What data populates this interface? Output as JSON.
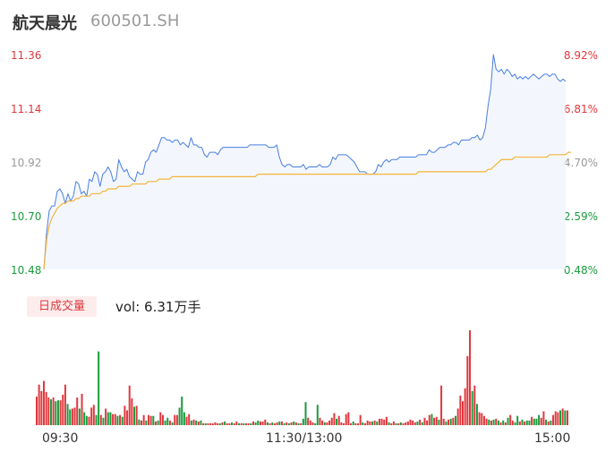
{
  "header": {
    "name": "航天晨光",
    "code": "600501.SH"
  },
  "volume_panel": {
    "tab_label": "日成交量",
    "vol_text": "vol: 6.31万手"
  },
  "colors": {
    "price_line": "#4a7fe0",
    "avg_line": "#f5b33a",
    "up": "#e0383e",
    "down": "#1a9c3c",
    "neutral": "#999999"
  },
  "chart_data": [
    {
      "type": "line",
      "title": "",
      "y_left_ticks": [
        "11.36",
        "11.14",
        "10.92",
        "10.70",
        "10.48"
      ],
      "y_right_ticks": [
        "8.92%",
        "6.81%",
        "4.70%",
        "2.59%",
        "0.48%"
      ],
      "ylim": [
        10.48,
        11.36
      ],
      "x_ticks": [
        "09:30",
        "11:30/13:00",
        "15:00"
      ],
      "series": [
        {
          "values": [
            10.48,
            10.63,
            10.72,
            10.74,
            10.74,
            10.8,
            10.81,
            10.79,
            10.75,
            10.79,
            10.76,
            10.78,
            10.84,
            10.83,
            10.79,
            10.8,
            10.78,
            10.85,
            10.84,
            10.88,
            10.87,
            10.82,
            10.87,
            10.88,
            10.9,
            10.88,
            10.84,
            10.85,
            10.93,
            10.9,
            10.88,
            10.89,
            10.86,
            10.85,
            10.84,
            10.88,
            10.87,
            10.87,
            10.92,
            10.93,
            10.96,
            10.97,
            10.96,
            10.99,
            11.02,
            11.02,
            11.01,
            11.01,
            11.0,
            11.01,
            11.01,
            10.99,
            11.0,
            10.99,
            10.98,
            11.02,
            10.99,
            10.99,
            10.98,
            10.98,
            10.95,
            10.94,
            10.96,
            10.96,
            10.96,
            10.95,
            10.97,
            10.98,
            10.98,
            10.98,
            10.98,
            10.98,
            10.98,
            10.98,
            10.98,
            10.98,
            10.98,
            10.99,
            10.99,
            10.99,
            10.99,
            10.99,
            10.99,
            10.99,
            10.98,
            10.98,
            10.98,
            10.99,
            10.94,
            10.91,
            10.9,
            10.91,
            10.91,
            10.9,
            10.9,
            10.9,
            10.9,
            10.91,
            10.89,
            10.9,
            10.9,
            10.9,
            10.9,
            10.91,
            10.9,
            10.9,
            10.9,
            10.91,
            10.94,
            10.93,
            10.95,
            10.95,
            10.95,
            10.95,
            10.94,
            10.93,
            10.92,
            10.9,
            10.88,
            10.88,
            10.88,
            10.87,
            10.87,
            10.87,
            10.88,
            10.91,
            10.9,
            10.92,
            10.93,
            10.92,
            10.93,
            10.93,
            10.93,
            10.94,
            10.94,
            10.94,
            10.94,
            10.94,
            10.94,
            10.94,
            10.95,
            10.95,
            10.95,
            10.95,
            10.97,
            10.96,
            10.96,
            10.97,
            10.98,
            10.98,
            10.98,
            10.99,
            10.99,
            11.0,
            11.0,
            10.99,
            11.01,
            11.01,
            11.01,
            11.01,
            11.02,
            11.02,
            11.03,
            11.01,
            11.02,
            11.06,
            11.15,
            11.22,
            11.36,
            11.3,
            11.29,
            11.3,
            11.28,
            11.3,
            11.29,
            11.27,
            11.28,
            11.26,
            11.27,
            11.26,
            11.27,
            11.26,
            11.27,
            11.28,
            11.27,
            11.26,
            11.27,
            11.28,
            11.28,
            11.27,
            11.28,
            11.28,
            11.26,
            11.25,
            11.26,
            11.25
          ]
        },
        {
          "values": [
            10.48,
            10.6,
            10.66,
            10.69,
            10.71,
            10.73,
            10.74,
            10.75,
            10.75,
            10.76,
            10.76,
            10.76,
            10.77,
            10.77,
            10.78,
            10.78,
            10.78,
            10.78,
            10.79,
            10.79,
            10.79,
            10.79,
            10.8,
            10.8,
            10.81,
            10.81,
            10.81,
            10.81,
            10.82,
            10.82,
            10.82,
            10.82,
            10.82,
            10.83,
            10.83,
            10.83,
            10.83,
            10.83,
            10.83,
            10.84,
            10.84,
            10.84,
            10.84,
            10.85,
            10.85,
            10.85,
            10.85,
            10.85,
            10.86,
            10.86,
            10.86,
            10.86,
            10.86,
            10.86,
            10.86,
            10.86,
            10.86,
            10.86,
            10.86,
            10.86,
            10.86,
            10.86,
            10.86,
            10.86,
            10.86,
            10.86,
            10.86,
            10.86,
            10.86,
            10.86,
            10.86,
            10.86,
            10.86,
            10.86,
            10.86,
            10.86,
            10.86,
            10.86,
            10.86,
            10.86,
            10.87,
            10.87,
            10.87,
            10.87,
            10.87,
            10.87,
            10.87,
            10.87,
            10.87,
            10.87,
            10.87,
            10.87,
            10.87,
            10.87,
            10.87,
            10.87,
            10.87,
            10.87,
            10.87,
            10.87,
            10.87,
            10.87,
            10.87,
            10.87,
            10.87,
            10.87,
            10.87,
            10.87,
            10.87,
            10.87,
            10.87,
            10.87,
            10.87,
            10.87,
            10.87,
            10.87,
            10.87,
            10.87,
            10.87,
            10.87,
            10.87,
            10.87,
            10.87,
            10.87,
            10.87,
            10.87,
            10.87,
            10.87,
            10.87,
            10.87,
            10.87,
            10.87,
            10.87,
            10.87,
            10.87,
            10.87,
            10.87,
            10.87,
            10.87,
            10.87,
            10.88,
            10.88,
            10.88,
            10.88,
            10.88,
            10.88,
            10.88,
            10.88,
            10.88,
            10.88,
            10.88,
            10.88,
            10.88,
            10.88,
            10.88,
            10.88,
            10.88,
            10.88,
            10.88,
            10.88,
            10.88,
            10.88,
            10.88,
            10.88,
            10.88,
            10.88,
            10.89,
            10.89,
            10.9,
            10.91,
            10.92,
            10.93,
            10.93,
            10.93,
            10.93,
            10.93,
            10.94,
            10.94,
            10.94,
            10.94,
            10.94,
            10.94,
            10.94,
            10.94,
            10.94,
            10.94,
            10.94,
            10.94,
            10.94,
            10.95,
            10.95,
            10.95,
            10.95,
            10.95,
            10.95,
            10.95,
            10.96,
            10.96
          ]
        }
      ]
    },
    {
      "type": "bar",
      "title": "",
      "values": [
        31,
        44,
        37,
        48,
        36,
        30,
        28,
        30,
        26,
        27,
        27,
        33,
        44,
        23,
        17,
        18,
        19,
        30,
        18,
        34,
        14,
        10,
        9,
        19,
        22,
        11,
        80,
        11,
        8,
        18,
        14,
        14,
        12,
        12,
        10,
        11,
        9,
        21,
        16,
        43,
        29,
        20,
        21,
        6,
        5,
        11,
        5,
        11,
        10,
        10,
        4,
        5,
        14,
        11,
        5,
        8,
        5,
        3,
        11,
        11,
        19,
        31,
        14,
        9,
        12,
        5,
        6,
        5,
        4,
        5,
        2,
        2,
        2,
        2,
        2,
        3,
        2,
        2,
        3,
        4,
        2,
        2,
        3,
        2,
        4,
        2,
        2,
        2,
        2,
        2,
        2,
        4,
        3,
        5,
        4,
        4,
        6,
        3,
        2,
        3,
        2,
        3,
        4,
        4,
        2,
        3,
        2,
        3,
        4,
        3,
        2,
        2,
        7,
        25,
        8,
        5,
        3,
        2,
        22,
        8,
        5,
        3,
        3,
        5,
        8,
        13,
        7,
        10,
        3,
        2,
        12,
        14,
        2,
        4,
        2,
        2,
        11,
        3,
        2,
        5,
        4,
        4,
        5,
        4,
        7,
        7,
        6,
        9,
        3,
        2,
        4,
        2,
        2,
        3,
        2,
        3,
        4,
        6,
        5,
        3,
        4,
        6,
        3,
        8,
        5,
        11,
        12,
        8,
        9,
        6,
        43,
        7,
        4,
        6,
        7,
        8,
        10,
        18,
        32,
        26,
        40,
        75,
        103,
        37,
        43,
        23,
        14,
        13,
        10,
        7,
        6,
        5,
        6,
        7,
        5,
        3,
        5,
        3,
        8,
        11,
        5,
        3,
        10,
        4,
        6,
        4,
        5,
        5,
        9,
        7,
        7,
        11,
        8,
        15,
        6,
        4,
        5,
        11,
        15,
        14,
        16,
        18,
        16,
        16
      ],
      "colors": [
        "up",
        "up",
        "up",
        "up",
        "up",
        "up",
        "down",
        "up",
        "down",
        "down",
        "up",
        "up",
        "up",
        "down",
        "down",
        "up",
        "up",
        "up",
        "down",
        "up",
        "down",
        "down",
        "up",
        "up",
        "up",
        "down",
        "down",
        "up",
        "down",
        "up",
        "down",
        "down",
        "up",
        "up",
        "down",
        "up",
        "down",
        "up",
        "up",
        "up",
        "up",
        "down",
        "up",
        "down",
        "up",
        "up",
        "down",
        "up",
        "up",
        "down",
        "up",
        "down",
        "up",
        "up",
        "down",
        "down",
        "up",
        "down",
        "up",
        "up",
        "down",
        "down",
        "down",
        "up",
        "up",
        "down",
        "up",
        "down",
        "up",
        "down",
        "up",
        "down",
        "up",
        "up",
        "up",
        "up",
        "up",
        "down",
        "up",
        "down",
        "up",
        "up",
        "down",
        "up",
        "up",
        "down",
        "up",
        "down",
        "up",
        "up",
        "down",
        "up",
        "down",
        "down",
        "up",
        "up",
        "up",
        "down",
        "up",
        "down",
        "up",
        "up",
        "down",
        "up",
        "down",
        "up",
        "down",
        "up",
        "down",
        "up",
        "down",
        "up",
        "down",
        "down",
        "up",
        "up",
        "up",
        "down",
        "down",
        "up",
        "up",
        "down",
        "up",
        "up",
        "up",
        "up",
        "down",
        "up",
        "up",
        "up",
        "up",
        "up",
        "up",
        "down",
        "up",
        "up",
        "up",
        "down",
        "up",
        "up",
        "up",
        "down",
        "up",
        "down",
        "up",
        "up",
        "up",
        "up",
        "down",
        "up",
        "up",
        "down",
        "up",
        "down",
        "up",
        "up",
        "up",
        "up",
        "up",
        "up",
        "down",
        "up",
        "down",
        "up",
        "up",
        "up",
        "down",
        "up",
        "up",
        "down",
        "up",
        "up",
        "down",
        "up",
        "down",
        "up",
        "down",
        "up",
        "up",
        "up",
        "up",
        "up",
        "up",
        "down",
        "up",
        "down",
        "up",
        "up",
        "up",
        "up",
        "down",
        "up",
        "down",
        "up",
        "down",
        "up",
        "down",
        "up",
        "down",
        "up",
        "up",
        "down",
        "down",
        "up",
        "down",
        "up",
        "down",
        "down",
        "up",
        "down",
        "down",
        "down",
        "up",
        "up",
        "down",
        "up",
        "down",
        "up",
        "up",
        "up",
        "down",
        "up",
        "down",
        "up",
        "down",
        "down",
        "up",
        "up",
        "neutral"
      ]
    }
  ]
}
